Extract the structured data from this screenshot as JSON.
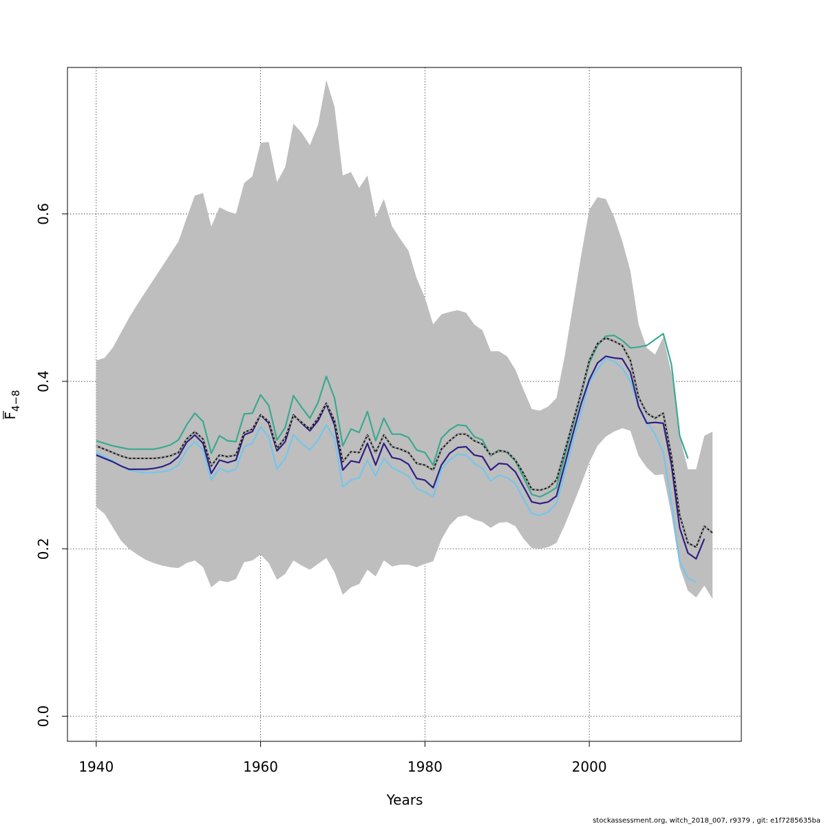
{
  "chart_data": {
    "type": "line",
    "title": "",
    "xlabel": "Years",
    "ylabel_base": "F",
    "ylabel_subscript": "4−8",
    "xlim": [
      1936.5,
      2018.5
    ],
    "ylim": [
      -0.03,
      0.775
    ],
    "xticks": [
      1940,
      1960,
      1980,
      2000
    ],
    "yticks": [
      0.0,
      0.2,
      0.4,
      0.6
    ],
    "ytick_labels": [
      "0.0",
      "0.2",
      "0.4",
      "0.6"
    ],
    "grid": true,
    "colors": {
      "band": "#bebebe",
      "teal": "#3aa98f",
      "navy": "#2e1f85",
      "lightblue": "#73c6ec",
      "black": "#1a1a1a"
    },
    "band": {
      "x": [
        1940,
        1941,
        1942,
        1943,
        1944,
        1945,
        1946,
        1947,
        1948,
        1949,
        1950,
        1951,
        1952,
        1953,
        1954,
        1955,
        1956,
        1957,
        1958,
        1959,
        1960,
        1961,
        1962,
        1963,
        1964,
        1965,
        1966,
        1967,
        1968,
        1969,
        1970,
        1971,
        1972,
        1973,
        1974,
        1975,
        1976,
        1977,
        1978,
        1979,
        1980,
        1981,
        1982,
        1983,
        1984,
        1985,
        1986,
        1987,
        1988,
        1989,
        1990,
        1991,
        1992,
        1993,
        1994,
        1995,
        1996,
        1997,
        1998,
        1999,
        2000,
        2001,
        2002,
        2003,
        2004,
        2005,
        2006,
        2007,
        2008,
        2009,
        2010,
        2011,
        2012,
        2013,
        2014,
        2015
      ],
      "upper": [
        0.425,
        0.428,
        0.44,
        0.458,
        0.476,
        0.492,
        0.507,
        0.522,
        0.537,
        0.552,
        0.567,
        0.595,
        0.622,
        0.625,
        0.585,
        0.608,
        0.603,
        0.6,
        0.637,
        0.645,
        0.685,
        0.686,
        0.638,
        0.656,
        0.708,
        0.697,
        0.682,
        0.707,
        0.76,
        0.728,
        0.646,
        0.65,
        0.631,
        0.646,
        0.596,
        0.618,
        0.585,
        0.57,
        0.556,
        0.523,
        0.5,
        0.468,
        0.48,
        0.483,
        0.485,
        0.482,
        0.468,
        0.461,
        0.436,
        0.436,
        0.43,
        0.414,
        0.39,
        0.367,
        0.365,
        0.37,
        0.38,
        0.43,
        0.49,
        0.55,
        0.605,
        0.62,
        0.618,
        0.597,
        0.568,
        0.532,
        0.468,
        0.44,
        0.432,
        0.453,
        0.41,
        0.335,
        0.295,
        0.295,
        0.335,
        0.34
      ],
      "lower": [
        0.25,
        0.242,
        0.226,
        0.21,
        0.2,
        0.193,
        0.187,
        0.183,
        0.18,
        0.178,
        0.177,
        0.183,
        0.186,
        0.178,
        0.154,
        0.162,
        0.16,
        0.164,
        0.184,
        0.186,
        0.193,
        0.183,
        0.163,
        0.17,
        0.186,
        0.18,
        0.175,
        0.182,
        0.189,
        0.172,
        0.145,
        0.154,
        0.158,
        0.175,
        0.167,
        0.186,
        0.179,
        0.181,
        0.181,
        0.178,
        0.182,
        0.185,
        0.211,
        0.228,
        0.238,
        0.24,
        0.235,
        0.232,
        0.225,
        0.231,
        0.232,
        0.227,
        0.212,
        0.201,
        0.2,
        0.202,
        0.207,
        0.228,
        0.252,
        0.277,
        0.303,
        0.323,
        0.334,
        0.34,
        0.344,
        0.341,
        0.311,
        0.297,
        0.288,
        0.289,
        0.24,
        0.178,
        0.15,
        0.142,
        0.156,
        0.14
      ]
    },
    "series": [
      {
        "color_key": "teal",
        "dashed": false,
        "x": [
          1940,
          1941,
          1942,
          1943,
          1944,
          1945,
          1946,
          1947,
          1948,
          1949,
          1950,
          1951,
          1952,
          1953,
          1954,
          1955,
          1956,
          1957,
          1958,
          1959,
          1960,
          1961,
          1962,
          1963,
          1964,
          1965,
          1966,
          1967,
          1968,
          1969,
          1970,
          1971,
          1972,
          1973,
          1974,
          1975,
          1976,
          1977,
          1978,
          1979,
          1980,
          1981,
          1982,
          1983,
          1984,
          1985,
          1986,
          1987,
          1988,
          1989,
          1990,
          1991,
          1992,
          1993,
          1994,
          1995,
          1996,
          1997,
          1998,
          1999,
          2000,
          2001,
          2002,
          2003,
          2004,
          2005,
          2006,
          2007,
          2008,
          2009,
          2010,
          2011,
          2012
        ],
        "values": [
          0.329,
          0.326,
          0.323,
          0.321,
          0.319,
          0.319,
          0.319,
          0.319,
          0.321,
          0.324,
          0.33,
          0.348,
          0.362,
          0.352,
          0.314,
          0.335,
          0.329,
          0.328,
          0.361,
          0.362,
          0.384,
          0.371,
          0.33,
          0.345,
          0.383,
          0.369,
          0.356,
          0.375,
          0.406,
          0.38,
          0.323,
          0.343,
          0.339,
          0.364,
          0.329,
          0.356,
          0.337,
          0.337,
          0.333,
          0.318,
          0.315,
          0.3,
          0.332,
          0.342,
          0.348,
          0.347,
          0.334,
          0.33,
          0.311,
          0.318,
          0.315,
          0.305,
          0.285,
          0.265,
          0.262,
          0.267,
          0.273,
          0.31,
          0.347,
          0.385,
          0.422,
          0.443,
          0.454,
          0.455,
          0.449,
          0.44,
          0.441,
          0.443,
          0.45,
          0.457,
          0.42,
          0.335,
          0.308
        ]
      },
      {
        "color_key": "lightblue",
        "dashed": false,
        "x": [
          1940,
          1941,
          1942,
          1943,
          1944,
          1945,
          1946,
          1947,
          1948,
          1949,
          1950,
          1951,
          1952,
          1953,
          1954,
          1955,
          1956,
          1957,
          1958,
          1959,
          1960,
          1961,
          1962,
          1963,
          1964,
          1965,
          1966,
          1967,
          1968,
          1969,
          1970,
          1971,
          1972,
          1973,
          1974,
          1975,
          1976,
          1977,
          1978,
          1979,
          1980,
          1981,
          1982,
          1983,
          1984,
          1985,
          1986,
          1987,
          1988,
          1989,
          1990,
          1991,
          1992,
          1993,
          1994,
          1995,
          1996,
          1997,
          1998,
          1999,
          2000,
          2001,
          2002,
          2003,
          2004,
          2005,
          2006,
          2007,
          2008,
          2009,
          2010,
          2011,
          2012,
          2013
        ],
        "values": [
          0.315,
          0.31,
          0.305,
          0.299,
          0.294,
          0.292,
          0.291,
          0.291,
          0.292,
          0.294,
          0.3,
          0.318,
          0.328,
          0.318,
          0.282,
          0.296,
          0.292,
          0.295,
          0.322,
          0.326,
          0.346,
          0.333,
          0.295,
          0.308,
          0.336,
          0.326,
          0.318,
          0.33,
          0.348,
          0.332,
          0.274,
          0.282,
          0.285,
          0.306,
          0.287,
          0.308,
          0.297,
          0.292,
          0.287,
          0.272,
          0.268,
          0.262,
          0.295,
          0.306,
          0.313,
          0.312,
          0.302,
          0.296,
          0.281,
          0.288,
          0.285,
          0.278,
          0.259,
          0.242,
          0.24,
          0.244,
          0.254,
          0.29,
          0.327,
          0.362,
          0.399,
          0.414,
          0.427,
          0.424,
          0.416,
          0.4,
          0.37,
          0.352,
          0.337,
          0.315,
          0.255,
          0.185,
          0.165,
          0.16
        ]
      },
      {
        "color_key": "navy",
        "dashed": false,
        "x": [
          1940,
          1941,
          1942,
          1943,
          1944,
          1945,
          1946,
          1947,
          1948,
          1949,
          1950,
          1951,
          1952,
          1953,
          1954,
          1955,
          1956,
          1957,
          1958,
          1959,
          1960,
          1961,
          1962,
          1963,
          1964,
          1965,
          1966,
          1967,
          1968,
          1969,
          1970,
          1971,
          1972,
          1973,
          1974,
          1975,
          1976,
          1977,
          1978,
          1979,
          1980,
          1981,
          1982,
          1983,
          1984,
          1985,
          1986,
          1987,
          1988,
          1989,
          1990,
          1991,
          1992,
          1993,
          1994,
          1995,
          1996,
          1997,
          1998,
          1999,
          2000,
          2001,
          2002,
          2003,
          2004,
          2005,
          2006,
          2007,
          2008,
          2009,
          2010,
          2011,
          2012,
          2013,
          2014
        ],
        "values": [
          0.312,
          0.308,
          0.304,
          0.299,
          0.295,
          0.295,
          0.295,
          0.296,
          0.298,
          0.302,
          0.31,
          0.327,
          0.336,
          0.326,
          0.29,
          0.306,
          0.303,
          0.306,
          0.336,
          0.34,
          0.36,
          0.35,
          0.317,
          0.328,
          0.36,
          0.35,
          0.341,
          0.353,
          0.373,
          0.348,
          0.294,
          0.305,
          0.303,
          0.326,
          0.3,
          0.326,
          0.309,
          0.307,
          0.301,
          0.284,
          0.282,
          0.273,
          0.3,
          0.314,
          0.321,
          0.322,
          0.312,
          0.31,
          0.294,
          0.302,
          0.301,
          0.292,
          0.274,
          0.256,
          0.254,
          0.256,
          0.263,
          0.3,
          0.337,
          0.373,
          0.402,
          0.422,
          0.43,
          0.428,
          0.427,
          0.411,
          0.37,
          0.35,
          0.351,
          0.35,
          0.3,
          0.225,
          0.195,
          0.188,
          0.212
        ]
      },
      {
        "color_key": "black",
        "dashed": false,
        "x": [
          1940,
          1941,
          1942,
          1943,
          1944,
          1945,
          1946,
          1947,
          1948,
          1949,
          1950,
          1951,
          1952,
          1953,
          1954,
          1955,
          1956,
          1957,
          1958,
          1959,
          1960,
          1961,
          1962,
          1963,
          1964,
          1965,
          1966,
          1967,
          1968,
          1969,
          1970,
          1971,
          1972,
          1973,
          1974,
          1975,
          1976,
          1977,
          1978,
          1979,
          1980,
          1981,
          1982,
          1983,
          1984,
          1985,
          1986,
          1987,
          1988,
          1989,
          1990,
          1991,
          1992,
          1993,
          1994,
          1995,
          1996,
          1997,
          1998,
          1999,
          2000,
          2001,
          2002,
          2003,
          2004,
          2005,
          2006,
          2007,
          2008,
          2009,
          2010,
          2011,
          2012,
          2013,
          2014,
          2015
        ],
        "values": [
          0.323,
          0.319,
          0.315,
          0.311,
          0.308,
          0.308,
          0.308,
          0.308,
          0.309,
          0.311,
          0.315,
          0.331,
          0.34,
          0.331,
          0.299,
          0.312,
          0.31,
          0.312,
          0.339,
          0.343,
          0.36,
          0.352,
          0.32,
          0.333,
          0.359,
          0.351,
          0.343,
          0.356,
          0.374,
          0.353,
          0.304,
          0.316,
          0.315,
          0.336,
          0.315,
          0.336,
          0.322,
          0.319,
          0.315,
          0.302,
          0.3,
          0.294,
          0.319,
          0.329,
          0.337,
          0.337,
          0.329,
          0.325,
          0.312,
          0.317,
          0.316,
          0.306,
          0.29,
          0.271,
          0.27,
          0.273,
          0.282,
          0.316,
          0.351,
          0.386,
          0.425,
          0.445,
          0.452,
          0.448,
          0.443,
          0.425,
          0.381,
          0.362,
          0.356,
          0.362,
          0.31,
          0.24,
          0.207,
          0.202,
          0.227,
          0.219
        ]
      },
      {
        "color_key": "black",
        "dashed": true,
        "x": [
          1940,
          1941,
          1942,
          1943,
          1944,
          1945,
          1946,
          1947,
          1948,
          1949,
          1950,
          1951,
          1952,
          1953,
          1954,
          1955,
          1956,
          1957,
          1958,
          1959,
          1960,
          1961,
          1962,
          1963,
          1964,
          1965,
          1966,
          1967,
          1968,
          1969,
          1970,
          1971,
          1972,
          1973,
          1974,
          1975,
          1976,
          1977,
          1978,
          1979,
          1980,
          1981,
          1982,
          1983,
          1984,
          1985,
          1986,
          1987,
          1988,
          1989,
          1990,
          1991,
          1992,
          1993,
          1994,
          1995,
          1996,
          1997,
          1998,
          1999,
          2000,
          2001,
          2002,
          2003,
          2004,
          2005,
          2006,
          2007,
          2008,
          2009,
          2010,
          2011,
          2012,
          2013,
          2014,
          2015
        ],
        "values": [
          0.323,
          0.319,
          0.315,
          0.311,
          0.308,
          0.308,
          0.308,
          0.308,
          0.309,
          0.311,
          0.315,
          0.331,
          0.34,
          0.331,
          0.299,
          0.312,
          0.31,
          0.312,
          0.339,
          0.343,
          0.36,
          0.352,
          0.32,
          0.333,
          0.359,
          0.351,
          0.343,
          0.356,
          0.374,
          0.353,
          0.304,
          0.316,
          0.315,
          0.336,
          0.315,
          0.336,
          0.322,
          0.319,
          0.315,
          0.302,
          0.3,
          0.294,
          0.319,
          0.329,
          0.337,
          0.337,
          0.329,
          0.325,
          0.312,
          0.317,
          0.316,
          0.306,
          0.29,
          0.271,
          0.27,
          0.273,
          0.282,
          0.316,
          0.351,
          0.386,
          0.425,
          0.445,
          0.452,
          0.448,
          0.443,
          0.425,
          0.381,
          0.362,
          0.356,
          0.362,
          0.31,
          0.24,
          0.207,
          0.202,
          0.227,
          0.219
        ]
      }
    ]
  },
  "footer": {
    "text": "stockassessment.org, witch_2018_007, r9379 , git: e1f7285635ba"
  }
}
